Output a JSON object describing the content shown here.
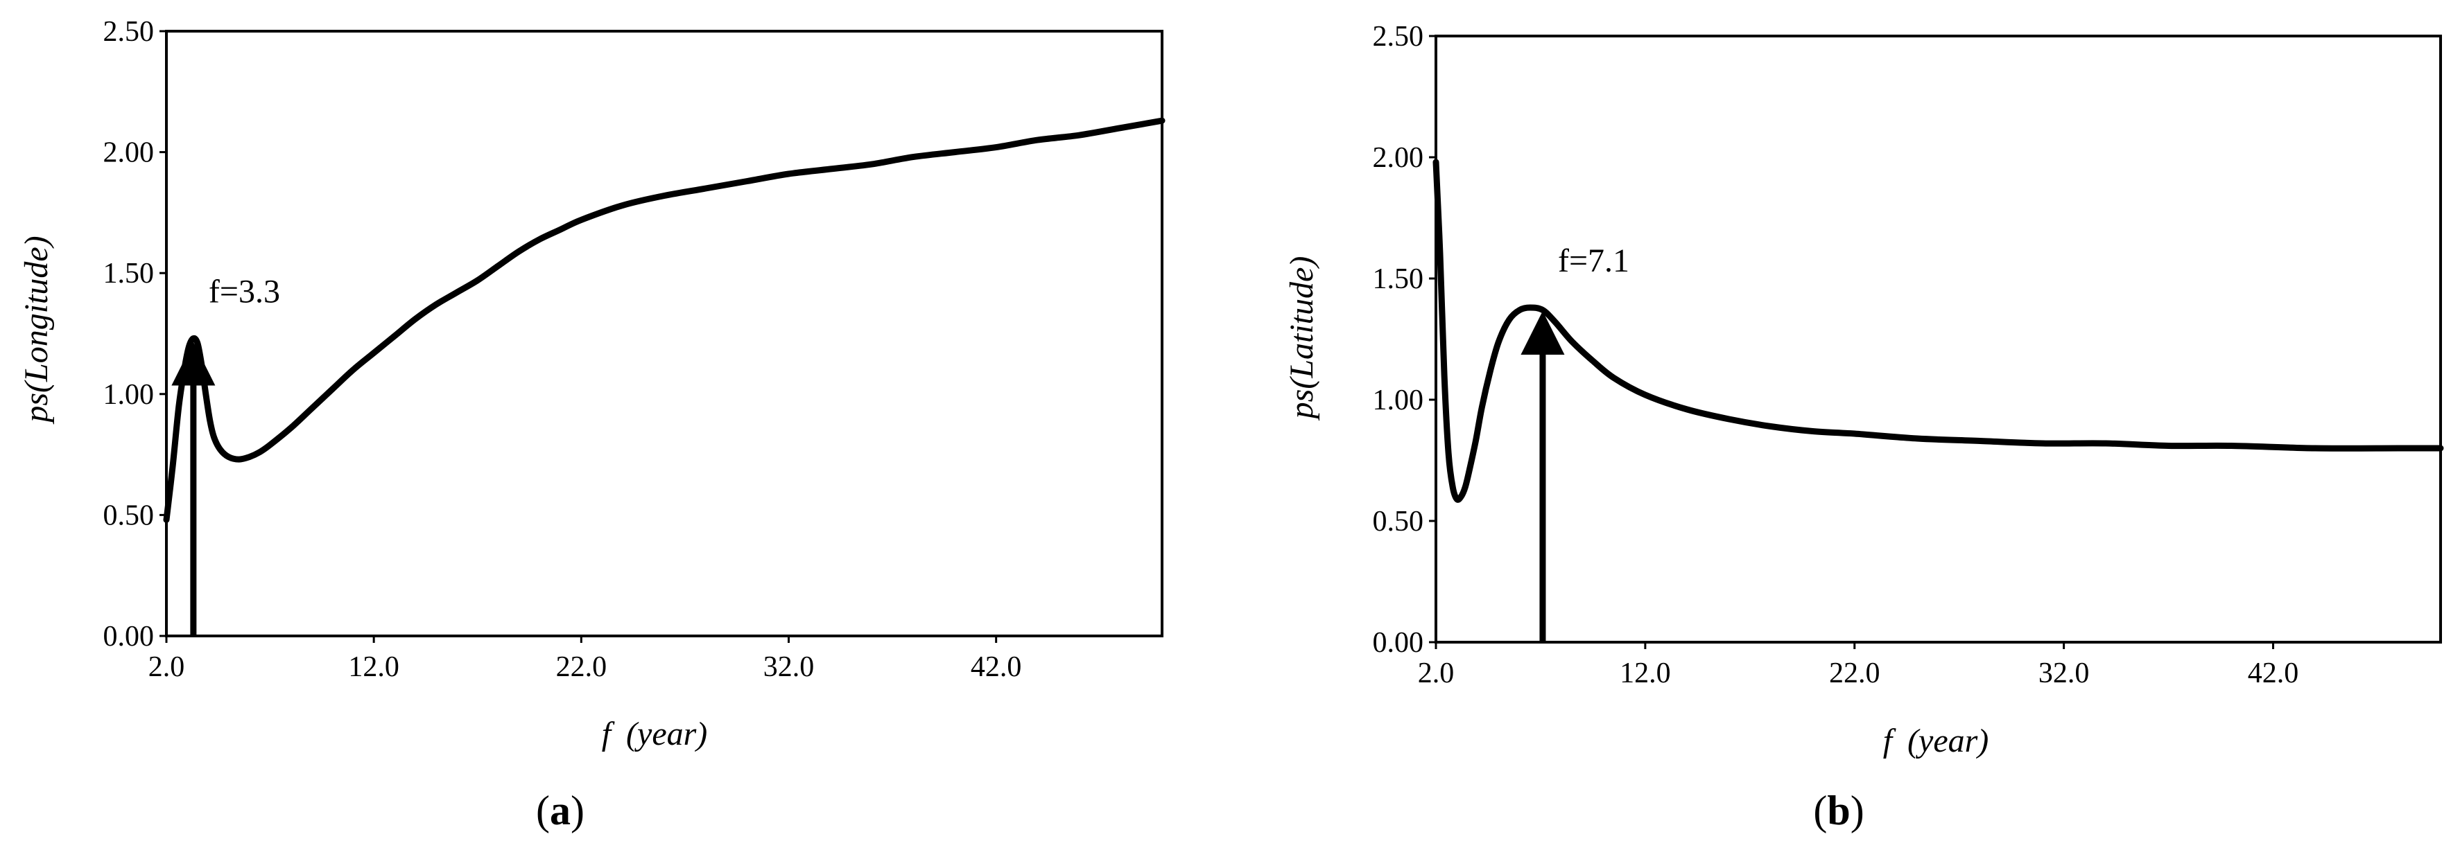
{
  "chart_data": [
    {
      "type": "line",
      "panel_label": {
        "open": "(",
        "letter": "a",
        "close": ")"
      },
      "title": "",
      "xlabel": {
        "symbol": "f",
        "unit": "(year)"
      },
      "ylabel": {
        "symbol": "ps",
        "text": "(Longitude)"
      },
      "xlim": [
        2.0,
        50.0
      ],
      "ylim": [
        0.0,
        2.5
      ],
      "xticks": [
        2.0,
        12.0,
        22.0,
        32.0,
        42.0
      ],
      "xtick_labels": [
        "2.0",
        "12.0",
        "22.0",
        "32.0",
        "42.0"
      ],
      "yticks": [
        0.0,
        0.5,
        1.0,
        1.5,
        2.0,
        2.5
      ],
      "ytick_labels": [
        "0.00",
        "0.50",
        "1.00",
        "1.50",
        "2.00",
        "2.50"
      ],
      "grid": false,
      "series": [
        {
          "x": [
            2.0,
            2.3,
            2.6,
            2.9,
            3.1,
            3.3,
            3.5,
            3.7,
            3.9,
            4.1,
            4.3,
            4.6,
            5.0,
            5.5,
            6.0,
            6.5,
            7.0,
            8.0,
            9.0,
            10.0,
            11.0,
            12.0,
            13.0,
            14.0,
            15.0,
            16.0,
            17.0,
            18.0,
            19.0,
            20.0,
            21.0,
            22.0,
            24.0,
            26.0,
            28.0,
            30.0,
            32.0,
            34.0,
            36.0,
            38.0,
            40.0,
            42.0,
            44.0,
            46.0,
            48.0,
            50.0
          ],
          "y": [
            0.48,
            0.7,
            0.95,
            1.12,
            1.2,
            1.23,
            1.21,
            1.12,
            1.0,
            0.89,
            0.82,
            0.77,
            0.74,
            0.73,
            0.74,
            0.76,
            0.79,
            0.86,
            0.94,
            1.02,
            1.1,
            1.17,
            1.24,
            1.31,
            1.37,
            1.42,
            1.47,
            1.53,
            1.59,
            1.64,
            1.68,
            1.72,
            1.78,
            1.82,
            1.85,
            1.88,
            1.91,
            1.93,
            1.95,
            1.98,
            2.0,
            2.02,
            2.05,
            2.07,
            2.1,
            2.13
          ]
        }
      ],
      "annotation": {
        "text": "f=3.3",
        "x": 3.3,
        "y": 1.23
      }
    },
    {
      "type": "line",
      "panel_label": {
        "open": "(",
        "letter": "b",
        "close": ")"
      },
      "title": "",
      "xlabel": {
        "symbol": "f",
        "unit": "(year)"
      },
      "ylabel": {
        "symbol": "ps",
        "text": "(Latitude)"
      },
      "xlim": [
        2.0,
        50.0
      ],
      "ylim": [
        0.0,
        2.5
      ],
      "xticks": [
        2.0,
        12.0,
        22.0,
        32.0,
        42.0
      ],
      "xtick_labels": [
        "2.0",
        "12.0",
        "22.0",
        "32.0",
        "42.0"
      ],
      "yticks": [
        0.0,
        0.5,
        1.0,
        1.5,
        2.0,
        2.5
      ],
      "ytick_labels": [
        "0.00",
        "0.50",
        "1.00",
        "1.50",
        "2.00",
        "2.50"
      ],
      "grid": false,
      "series": [
        {
          "x": [
            2.0,
            2.2,
            2.4,
            2.6,
            2.8,
            3.0,
            3.2,
            3.4,
            3.6,
            3.9,
            4.2,
            4.6,
            5.0,
            5.5,
            6.0,
            6.5,
            7.1,
            7.7,
            8.5,
            9.5,
            10.5,
            12.0,
            14.0,
            16.0,
            18.0,
            20.0,
            22.0,
            25.0,
            28.0,
            31.0,
            34.0,
            37.0,
            40.0,
            44.0,
            48.0,
            50.0
          ],
          "y": [
            1.98,
            1.6,
            1.1,
            0.78,
            0.64,
            0.59,
            0.6,
            0.64,
            0.71,
            0.83,
            0.97,
            1.12,
            1.24,
            1.33,
            1.37,
            1.38,
            1.37,
            1.32,
            1.24,
            1.16,
            1.09,
            1.02,
            0.96,
            0.92,
            0.89,
            0.87,
            0.86,
            0.84,
            0.83,
            0.82,
            0.82,
            0.81,
            0.81,
            0.8,
            0.8,
            0.8
          ]
        }
      ],
      "annotation": {
        "text": "f=7.1",
        "x": 7.1,
        "y": 1.38
      }
    }
  ]
}
